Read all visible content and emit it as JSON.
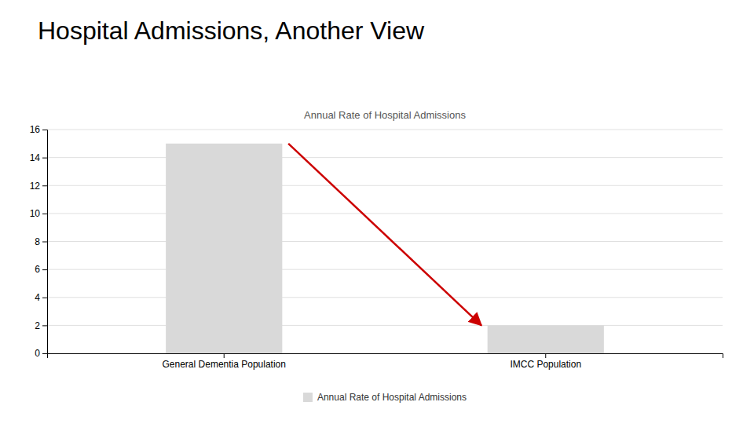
{
  "chart_data": {
    "type": "bar",
    "title": "Hospital Admissions, Another View",
    "subtitle": "Annual Rate of Hospital Admissions",
    "categories": [
      "General Dementia Population",
      "IMCC Population"
    ],
    "series": [
      {
        "name": "Annual Rate of Hospital Admissions",
        "color": "#d9d9d9",
        "values": [
          15,
          2
        ]
      }
    ],
    "ylim": [
      0,
      16
    ],
    "yticks": [
      0,
      2,
      4,
      6,
      8,
      10,
      12,
      14,
      16
    ],
    "grid": true,
    "legend": "bottom"
  }
}
